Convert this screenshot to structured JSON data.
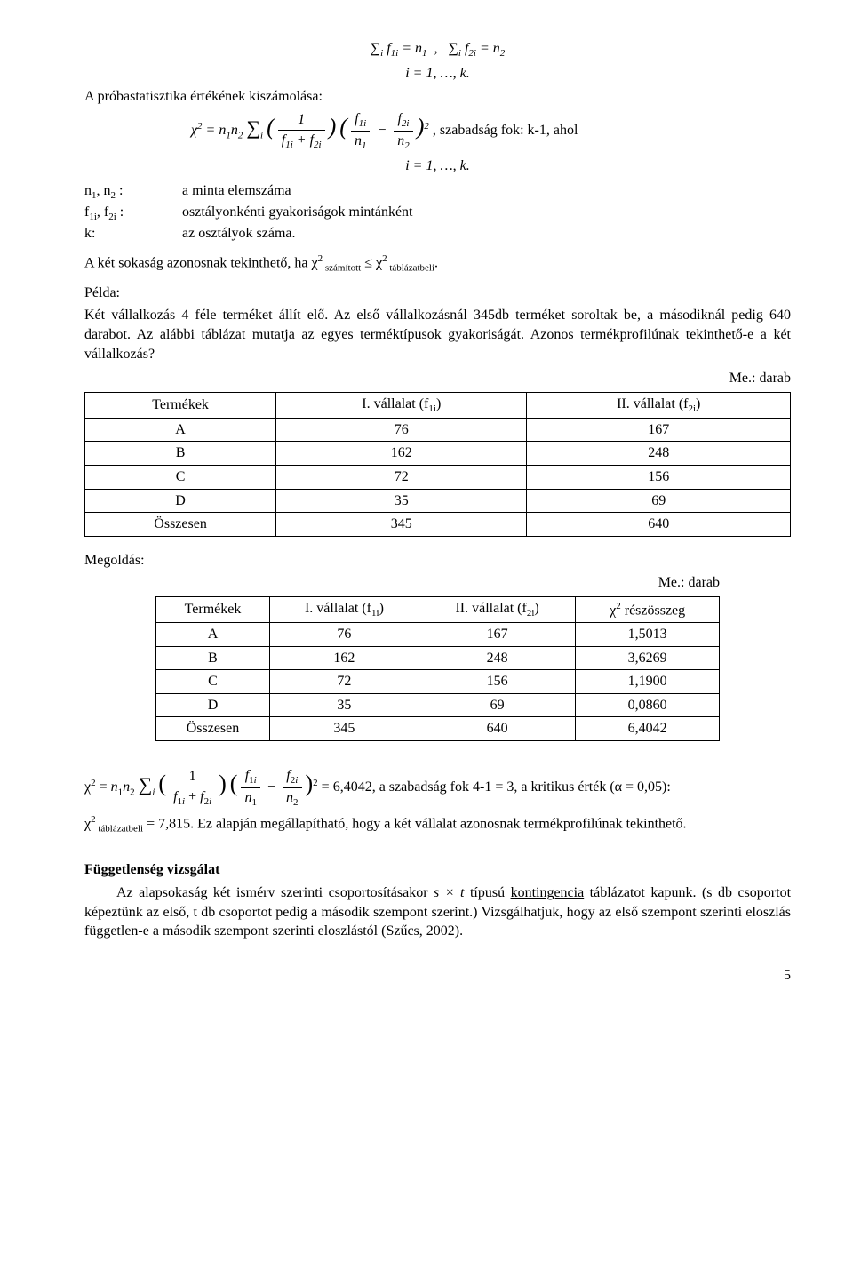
{
  "formulas": {
    "sum1": "∑ f₁ᵢ = n₁ ,   ∑ f₂ᵢ = n₂",
    "sum1_sub": "i                      i",
    "range1": "i = 1, …, k.",
    "intro_line": "A próbastatisztika értékének kiszámolása:",
    "chi_formula_tex": "χ² = n₁n₂ ∑ᵢ ( 1 / (f₁ᵢ + f₂ᵢ) ) ( f₁ᵢ / n₁ − f₂ᵢ / n₂ )²",
    "chi_suffix": ", szabadság fok: k-1, ahol",
    "range2": "i = 1, …, k."
  },
  "defs": {
    "n": {
      "term": "n₁, n₂ :",
      "desc": "a minta elemszáma"
    },
    "f": {
      "term": "f₁ᵢ, f₂ᵢ :",
      "desc": "osztályonkénti gyakoriságok mintánként"
    },
    "k": {
      "term": "k:",
      "desc": "az osztályok száma."
    }
  },
  "criterion": "A két sokaság azonosnak tekinthető, ha χ² számított ≤ χ² táblázatbeli.",
  "example": {
    "title": "Példa:",
    "text": "Két vállalkozás 4 féle terméket állít elő. Az első vállalkozásnál 345db terméket soroltak be, a másodiknál pedig 640 darabot. Az alábbi táblázat mutatja az egyes terméktípusok gyakoriságát. Azonos termékprofilúnak tekinthető-e a két vállalkozás?"
  },
  "me_label": "Me.: darab",
  "table1": {
    "headers": [
      "Termékek",
      "I. vállalat (f₁ᵢ)",
      "II. vállalat (f₂ᵢ)"
    ],
    "rows": [
      [
        "A",
        "76",
        "167"
      ],
      [
        "B",
        "162",
        "248"
      ],
      [
        "C",
        "72",
        "156"
      ],
      [
        "D",
        "35",
        "69"
      ],
      [
        "Összesen",
        "345",
        "640"
      ]
    ]
  },
  "solution_label": "Megoldás:",
  "table2": {
    "headers": [
      "Termékek",
      "I. vállalat (f₁ᵢ)",
      "II. vállalat (f₂ᵢ)",
      "χ² részösszeg"
    ],
    "rows": [
      [
        "A",
        "76",
        "167",
        "1,5013"
      ],
      [
        "B",
        "162",
        "248",
        "3,6269"
      ],
      [
        "C",
        "72",
        "156",
        "1,1900"
      ],
      [
        "D",
        "35",
        "69",
        "0,0860"
      ],
      [
        "Összesen",
        "345",
        "640",
        "6,4042"
      ]
    ]
  },
  "result": {
    "formula_plain": "χ² = n₁n₂ ∑ᵢ (1 / (f₁ᵢ + f₂ᵢ)) (f₁ᵢ/n₁ − f₂ᵢ/n₂)² = 6,4042",
    "tail1": ", a szabadság fok 4-1 = 3, a kritikus érték (α = 0,05):",
    "line2": "χ² táblázatbeli = 7,815. Ez alapján megállapítható, hogy a két vállalat azonosnak termékprofilúnak tekinthető."
  },
  "independence": {
    "title": "Függetlenség vizsgálat",
    "p1a": "Az alapsokaság két ismérv szerinti csoportosításakor ",
    "p1_em": "s × t",
    "p1b": " típusú ",
    "p1_u": "kontingencia",
    "p1c": " táblázatot kapunk. (s db csoportot képeztünk az első, t db csoportot pedig a második szempont szerint.) Vizsgálhatjuk, hogy az első szempont szerinti eloszlás független-e a második szempont szerinti eloszlástól (Szűcs, 2002)."
  },
  "pagenum": "5"
}
